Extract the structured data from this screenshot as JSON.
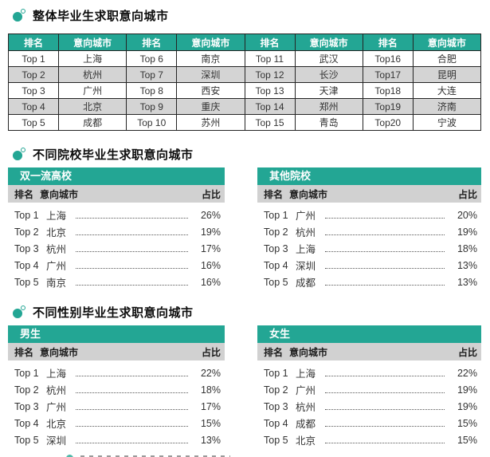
{
  "colors": {
    "teal": "#23A694",
    "row_alt": "#D4D4D4",
    "subheader_gray": "#D1D1D1",
    "border": "#242424",
    "text": "#333333"
  },
  "sections": [
    {
      "title": "整体毕业生求职意向城市",
      "table": {
        "headers": [
          "排名",
          "意向城市",
          "排名",
          "意向城市",
          "排名",
          "意向城市",
          "排名",
          "意向城市"
        ],
        "rows": [
          [
            "Top 1",
            "上海",
            "Top 6",
            "南京",
            "Top 11",
            "武汉",
            "Top16",
            "合肥"
          ],
          [
            "Top 2",
            "杭州",
            "Top 7",
            "深圳",
            "Top 12",
            "长沙",
            "Top17",
            "昆明"
          ],
          [
            "Top 3",
            "广州",
            "Top 8",
            "西安",
            "Top 13",
            "天津",
            "Top18",
            "大连"
          ],
          [
            "Top 4",
            "北京",
            "Top 9",
            "重庆",
            "Top 14",
            "郑州",
            "Top19",
            "济南"
          ],
          [
            "Top 5",
            "成都",
            "Top 10",
            "苏州",
            "Top 15",
            "青岛",
            "Top20",
            "宁波"
          ]
        ]
      }
    },
    {
      "title": "不同院校毕业生求职意向城市",
      "subtables": [
        {
          "title": "双一流高校",
          "col_headers": [
            "排名",
            "意向城市",
            "占比"
          ],
          "rows": [
            [
              "Top 1",
              "上海",
              "26%"
            ],
            [
              "Top 2",
              "北京",
              "19%"
            ],
            [
              "Top 3",
              "杭州",
              "17%"
            ],
            [
              "Top 4",
              "广州",
              "16%"
            ],
            [
              "Top 5",
              "南京",
              "16%"
            ]
          ]
        },
        {
          "title": "其他院校",
          "col_headers": [
            "排名",
            "意向城市",
            "占比"
          ],
          "rows": [
            [
              "Top 1",
              "广州",
              "20%"
            ],
            [
              "Top 2",
              "杭州",
              "19%"
            ],
            [
              "Top 3",
              "上海",
              "18%"
            ],
            [
              "Top 4",
              "深圳",
              "13%"
            ],
            [
              "Top 5",
              "成都",
              "13%"
            ]
          ]
        }
      ]
    },
    {
      "title": "不同性别毕业生求职意向城市",
      "subtables": [
        {
          "title": "男生",
          "col_headers": [
            "排名",
            "意向城市",
            "占比"
          ],
          "rows": [
            [
              "Top 1",
              "上海",
              "22%"
            ],
            [
              "Top 2",
              "杭州",
              "18%"
            ],
            [
              "Top 3",
              "广州",
              "17%"
            ],
            [
              "Top 4",
              "北京",
              "15%"
            ],
            [
              "Top 5",
              "深圳",
              "13%"
            ]
          ]
        },
        {
          "title": "女生",
          "col_headers": [
            "排名",
            "意向城市",
            "占比"
          ],
          "rows": [
            [
              "Top 1",
              "上海",
              "22%"
            ],
            [
              "Top 2",
              "广州",
              "19%"
            ],
            [
              "Top 3",
              "杭州",
              "19%"
            ],
            [
              "Top 4",
              "成都",
              "15%"
            ],
            [
              "Top 5",
              "北京",
              "15%"
            ]
          ]
        }
      ]
    }
  ],
  "chart_data": [
    {
      "type": "table",
      "title": "整体毕业生求职意向城市",
      "columns": [
        "排名",
        "意向城市"
      ],
      "rows": [
        [
          "Top 1",
          "上海"
        ],
        [
          "Top 2",
          "杭州"
        ],
        [
          "Top 3",
          "广州"
        ],
        [
          "Top 4",
          "北京"
        ],
        [
          "Top 5",
          "成都"
        ],
        [
          "Top 6",
          "南京"
        ],
        [
          "Top 7",
          "深圳"
        ],
        [
          "Top 8",
          "西安"
        ],
        [
          "Top 9",
          "重庆"
        ],
        [
          "Top 10",
          "苏州"
        ],
        [
          "Top 11",
          "武汉"
        ],
        [
          "Top 12",
          "长沙"
        ],
        [
          "Top 13",
          "天津"
        ],
        [
          "Top 14",
          "郑州"
        ],
        [
          "Top 15",
          "青岛"
        ],
        [
          "Top16",
          "合肥"
        ],
        [
          "Top17",
          "昆明"
        ],
        [
          "Top18",
          "大连"
        ],
        [
          "Top19",
          "济南"
        ],
        [
          "Top20",
          "宁波"
        ]
      ]
    },
    {
      "type": "table",
      "title": "双一流高校",
      "section": "不同院校毕业生求职意向城市",
      "columns": [
        "排名",
        "意向城市",
        "占比"
      ],
      "rows": [
        [
          "Top 1",
          "上海",
          "26%"
        ],
        [
          "Top 2",
          "北京",
          "19%"
        ],
        [
          "Top 3",
          "杭州",
          "17%"
        ],
        [
          "Top 4",
          "广州",
          "16%"
        ],
        [
          "Top 5",
          "南京",
          "16%"
        ]
      ]
    },
    {
      "type": "table",
      "title": "其他院校",
      "section": "不同院校毕业生求职意向城市",
      "columns": [
        "排名",
        "意向城市",
        "占比"
      ],
      "rows": [
        [
          "Top 1",
          "广州",
          "20%"
        ],
        [
          "Top 2",
          "杭州",
          "19%"
        ],
        [
          "Top 3",
          "上海",
          "18%"
        ],
        [
          "Top 4",
          "深圳",
          "13%"
        ],
        [
          "Top 5",
          "成都",
          "13%"
        ]
      ]
    },
    {
      "type": "table",
      "title": "男生",
      "section": "不同性别毕业生求职意向城市",
      "columns": [
        "排名",
        "意向城市",
        "占比"
      ],
      "rows": [
        [
          "Top 1",
          "上海",
          "22%"
        ],
        [
          "Top 2",
          "杭州",
          "18%"
        ],
        [
          "Top 3",
          "广州",
          "17%"
        ],
        [
          "Top 4",
          "北京",
          "15%"
        ],
        [
          "Top 5",
          "深圳",
          "13%"
        ]
      ]
    },
    {
      "type": "table",
      "title": "女生",
      "section": "不同性别毕业生求职意向城市",
      "columns": [
        "排名",
        "意向城市",
        "占比"
      ],
      "rows": [
        [
          "Top 1",
          "上海",
          "22%"
        ],
        [
          "Top 2",
          "广州",
          "19%"
        ],
        [
          "Top 3",
          "杭州",
          "19%"
        ],
        [
          "Top 4",
          "成都",
          "15%"
        ],
        [
          "Top 5",
          "北京",
          "15%"
        ]
      ]
    }
  ]
}
